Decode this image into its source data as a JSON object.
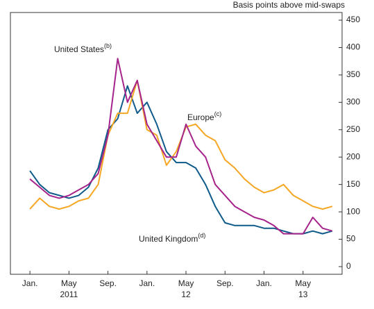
{
  "chart_data": {
    "type": "line",
    "y_axis_label": "Basis points above mid-swaps",
    "x": [
      "2011-01",
      "2011-02",
      "2011-03",
      "2011-04",
      "2011-05",
      "2011-06",
      "2011-07",
      "2011-08",
      "2011-09",
      "2011-10",
      "2011-11",
      "2011-12",
      "2012-01",
      "2012-02",
      "2012-03",
      "2012-04",
      "2012-05",
      "2012-06",
      "2012-07",
      "2012-08",
      "2012-09",
      "2012-10",
      "2012-11",
      "2012-12",
      "2013-01",
      "2013-02",
      "2013-03",
      "2013-04",
      "2013-05",
      "2013-06",
      "2013-07",
      "2013-08"
    ],
    "series": [
      {
        "name": "United Kingdom",
        "note": "(d)",
        "color": "#0e5a8a",
        "values": [
          175,
          150,
          135,
          130,
          125,
          130,
          145,
          180,
          250,
          270,
          330,
          280,
          300,
          260,
          210,
          190,
          190,
          180,
          150,
          110,
          80,
          75,
          75,
          75,
          70,
          70,
          65,
          60,
          60,
          65,
          60,
          65
        ]
      },
      {
        "name": "Europe",
        "note": "(c)",
        "color": "#f5a623",
        "values": [
          105,
          125,
          110,
          105,
          110,
          120,
          125,
          150,
          240,
          280,
          280,
          340,
          250,
          240,
          185,
          210,
          255,
          260,
          240,
          230,
          195,
          180,
          160,
          145,
          135,
          140,
          150,
          130,
          120,
          110,
          105,
          110
        ]
      },
      {
        "name": "United States",
        "note": "(b)",
        "color": "#a5238a",
        "values": [
          160,
          145,
          130,
          125,
          130,
          140,
          150,
          170,
          240,
          380,
          300,
          340,
          260,
          230,
          200,
          200,
          260,
          220,
          200,
          150,
          130,
          110,
          100,
          90,
          85,
          75,
          60,
          60,
          60,
          90,
          70,
          65
        ]
      }
    ],
    "xlim": [
      "2010-11",
      "2013-09"
    ],
    "xticks": [
      {
        "value": "2011-01",
        "label": "Jan."
      },
      {
        "value": "2011-05",
        "label": "May"
      },
      {
        "value": "2011-09",
        "label": "Sep."
      },
      {
        "value": "2012-01",
        "label": "Jan."
      },
      {
        "value": "2012-05",
        "label": "May"
      },
      {
        "value": "2012-09",
        "label": "Sep."
      },
      {
        "value": "2013-01",
        "label": "Jan."
      },
      {
        "value": "2013-05",
        "label": "May"
      }
    ],
    "xticks_year": [
      {
        "value": "2011-05",
        "label": "2011"
      },
      {
        "value": "2012-05",
        "label": "12"
      },
      {
        "value": "2013-05",
        "label": "13"
      }
    ],
    "ylim": [
      -14,
      464
    ],
    "yticks": [
      0,
      50,
      100,
      150,
      200,
      250,
      300,
      350,
      400,
      450
    ],
    "grid": false
  }
}
